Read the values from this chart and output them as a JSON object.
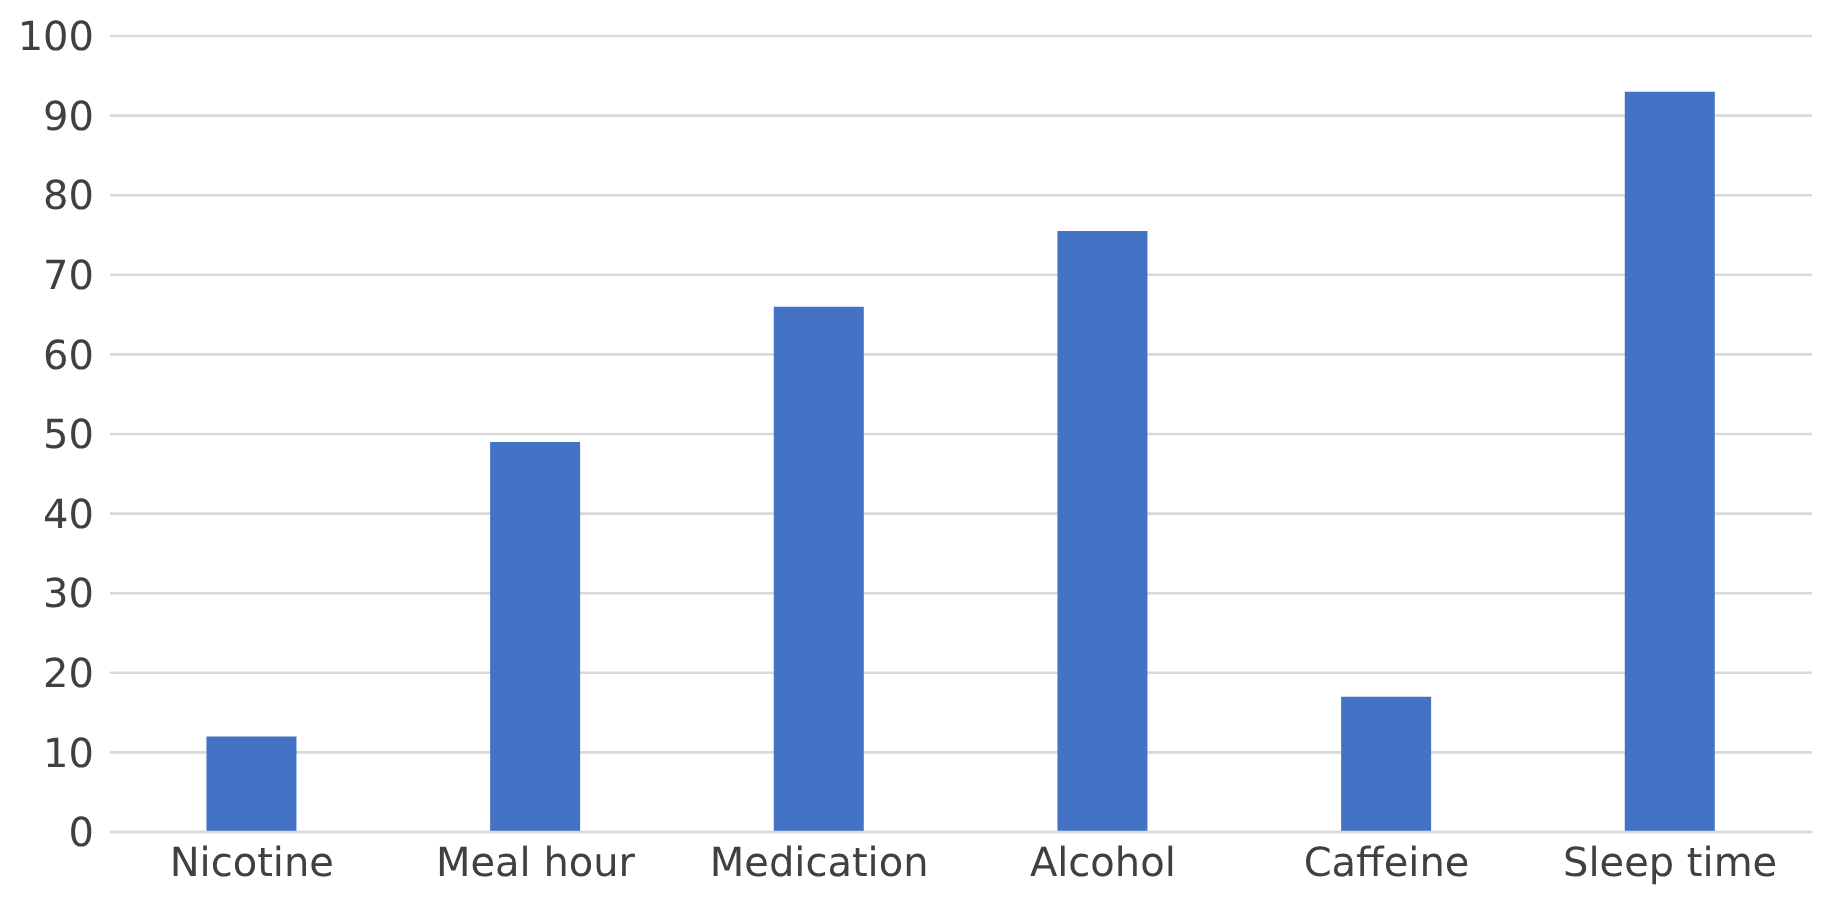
{
  "chart_data": {
    "type": "bar",
    "categories": [
      "Nicotine",
      "Meal hour",
      "Medication",
      "Alcohol",
      "Caffeine",
      "Sleep time"
    ],
    "values": [
      12,
      49,
      66,
      75.5,
      17,
      93
    ],
    "color": "#4472c4",
    "ylim": [
      0,
      100
    ],
    "yticks": [
      0,
      10,
      20,
      30,
      40,
      50,
      60,
      70,
      80,
      90,
      100
    ],
    "grid": "y",
    "legend": false
  }
}
